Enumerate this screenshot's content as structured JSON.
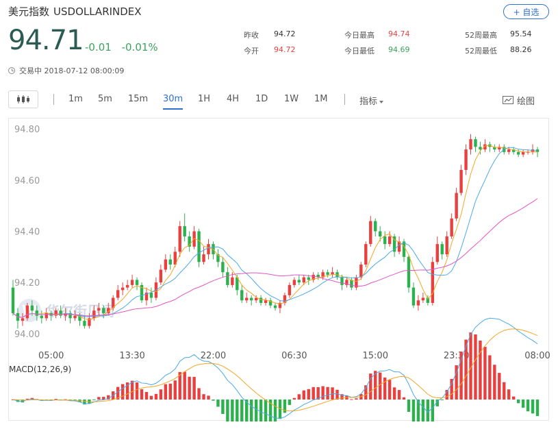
{
  "header": {
    "name": "美元指数",
    "code": "USDOLLARINDEX",
    "add_label": "+ 自选"
  },
  "quote": {
    "price": "94.71",
    "change": "-0.01",
    "change_pct": "-0.01%",
    "status": "交易中 2018-07-12 08:00:09"
  },
  "stats": [
    [
      {
        "label": "昨收",
        "value": "94.72",
        "tone": "dark"
      },
      {
        "label": "今开",
        "value": "94.72",
        "tone": "red"
      }
    ],
    [
      {
        "label": "今日最高",
        "value": "94.74",
        "tone": "red"
      },
      {
        "label": "今日最低",
        "value": "94.69",
        "tone": "green"
      }
    ],
    [
      {
        "label": "52周最高",
        "value": "95.54",
        "tone": "dark"
      },
      {
        "label": "52周最低",
        "value": "88.26",
        "tone": "dark"
      }
    ]
  ],
  "toolbar": {
    "periods": [
      "1m",
      "5m",
      "15m",
      "30m",
      "1H",
      "4H",
      "1D",
      "1W",
      "1M"
    ],
    "active_period": "30m",
    "indicator_label": "指标",
    "draw_label": "绘图"
  },
  "colors": {
    "up": "#e8403f",
    "down": "#2db14e",
    "ma_orange": "#f5a623",
    "ma_blue": "#4aa8e8",
    "ma_pink": "#e455c4",
    "macd_dif": "#4aa8e8",
    "macd_dea": "#f5a623"
  },
  "chart_data": {
    "type": "candlestick",
    "ylim": [
      93.97,
      94.83
    ],
    "y_ticks": [
      "94.80",
      "94.60",
      "94.40",
      "94.20",
      "94.00"
    ],
    "y_tick_values": [
      94.8,
      94.6,
      94.4,
      94.2,
      94.0
    ],
    "x_ticks": [
      "05:00",
      "13:30",
      "22:00",
      "06:30",
      "15:00",
      "23:30",
      "08:00"
    ],
    "x_tick_index": [
      8,
      25,
      42,
      59,
      76,
      93,
      110
    ],
    "watermark": "华尔街见闻",
    "candles": [
      [
        94.18,
        94.08,
        94.21,
        94.07
      ],
      [
        94.08,
        94.05,
        94.1,
        94.02
      ],
      [
        94.05,
        94.06,
        94.08,
        94.03
      ],
      [
        94.06,
        94.11,
        94.12,
        94.05
      ],
      [
        94.11,
        94.09,
        94.13,
        94.07
      ],
      [
        94.09,
        94.07,
        94.11,
        94.05
      ],
      [
        94.07,
        94.06,
        94.09,
        94.04
      ],
      [
        94.06,
        94.08,
        94.1,
        94.05
      ],
      [
        94.08,
        94.07,
        94.09,
        94.05
      ],
      [
        94.07,
        94.09,
        94.1,
        94.06
      ],
      [
        94.09,
        94.07,
        94.11,
        94.06
      ],
      [
        94.07,
        94.08,
        94.1,
        94.05
      ],
      [
        94.08,
        94.06,
        94.09,
        94.04
      ],
      [
        94.06,
        94.07,
        94.09,
        94.05
      ],
      [
        94.07,
        94.05,
        94.08,
        94.03
      ],
      [
        94.05,
        94.03,
        94.07,
        94.02
      ],
      [
        94.03,
        94.06,
        94.08,
        94.02
      ],
      [
        94.06,
        94.09,
        94.11,
        94.05
      ],
      [
        94.09,
        94.1,
        94.12,
        94.07
      ],
      [
        94.1,
        94.08,
        94.11,
        94.06
      ],
      [
        94.08,
        94.1,
        94.12,
        94.07
      ],
      [
        94.1,
        94.14,
        94.15,
        94.09
      ],
      [
        94.14,
        94.17,
        94.19,
        94.13
      ],
      [
        94.17,
        94.18,
        94.2,
        94.15
      ],
      [
        94.18,
        94.19,
        94.21,
        94.17
      ],
      [
        94.19,
        94.21,
        94.23,
        94.18
      ],
      [
        94.21,
        94.19,
        94.22,
        94.17
      ],
      [
        94.19,
        94.13,
        94.2,
        94.12
      ],
      [
        94.13,
        94.16,
        94.18,
        94.11
      ],
      [
        94.16,
        94.14,
        94.18,
        94.12
      ],
      [
        94.14,
        94.2,
        94.22,
        94.13
      ],
      [
        94.2,
        94.25,
        94.27,
        94.19
      ],
      [
        94.25,
        94.29,
        94.31,
        94.24
      ],
      [
        94.29,
        94.27,
        94.31,
        94.25
      ],
      [
        94.27,
        94.32,
        94.34,
        94.26
      ],
      [
        94.32,
        94.42,
        94.44,
        94.3
      ],
      [
        94.42,
        94.38,
        94.47,
        94.36
      ],
      [
        94.38,
        94.34,
        94.4,
        94.32
      ],
      [
        94.34,
        94.4,
        94.42,
        94.33
      ],
      [
        94.4,
        94.28,
        94.41,
        94.26
      ],
      [
        94.28,
        94.31,
        94.34,
        94.27
      ],
      [
        94.31,
        94.35,
        94.37,
        94.29
      ],
      [
        94.35,
        94.31,
        94.36,
        94.29
      ],
      [
        94.31,
        94.28,
        94.33,
        94.26
      ],
      [
        94.28,
        94.24,
        94.3,
        94.22
      ],
      [
        94.24,
        94.19,
        94.26,
        94.18
      ],
      [
        94.19,
        94.22,
        94.24,
        94.18
      ],
      [
        94.22,
        94.17,
        94.23,
        94.15
      ],
      [
        94.17,
        94.13,
        94.19,
        94.12
      ],
      [
        94.13,
        94.14,
        94.16,
        94.12
      ],
      [
        94.14,
        94.13,
        94.15,
        94.11
      ],
      [
        94.13,
        94.14,
        94.15,
        94.12
      ],
      [
        94.14,
        94.12,
        94.15,
        94.11
      ],
      [
        94.12,
        94.13,
        94.14,
        94.11
      ],
      [
        94.13,
        94.11,
        94.14,
        94.1
      ],
      [
        94.11,
        94.1,
        94.12,
        94.09
      ],
      [
        94.1,
        94.12,
        94.13,
        94.08
      ],
      [
        94.12,
        94.15,
        94.16,
        94.11
      ],
      [
        94.15,
        94.19,
        94.2,
        94.14
      ],
      [
        94.19,
        94.21,
        94.22,
        94.18
      ],
      [
        94.21,
        94.2,
        94.23,
        94.19
      ],
      [
        94.2,
        94.22,
        94.23,
        94.19
      ],
      [
        94.22,
        94.21,
        94.23,
        94.19
      ],
      [
        94.21,
        94.23,
        94.24,
        94.2
      ],
      [
        94.23,
        94.22,
        94.24,
        94.21
      ],
      [
        94.22,
        94.24,
        94.25,
        94.21
      ],
      [
        94.24,
        94.23,
        94.25,
        94.22
      ],
      [
        94.23,
        94.24,
        94.26,
        94.22
      ],
      [
        94.24,
        94.22,
        94.25,
        94.21
      ],
      [
        94.22,
        94.19,
        94.23,
        94.17
      ],
      [
        94.19,
        94.21,
        94.22,
        94.18
      ],
      [
        94.21,
        94.18,
        94.22,
        94.17
      ],
      [
        94.18,
        94.22,
        94.23,
        94.17
      ],
      [
        94.22,
        94.27,
        94.28,
        94.21
      ],
      [
        94.27,
        94.35,
        94.36,
        94.26
      ],
      [
        94.35,
        94.44,
        94.46,
        94.34
      ],
      [
        94.44,
        94.4,
        94.45,
        94.38
      ],
      [
        94.4,
        94.38,
        94.42,
        94.36
      ],
      [
        94.38,
        94.35,
        94.4,
        94.33
      ],
      [
        94.35,
        94.38,
        94.4,
        94.34
      ],
      [
        94.38,
        94.32,
        94.39,
        94.3
      ],
      [
        94.32,
        94.36,
        94.38,
        94.31
      ],
      [
        94.36,
        94.3,
        94.37,
        94.28
      ],
      [
        94.3,
        94.18,
        94.31,
        94.16
      ],
      [
        94.18,
        94.11,
        94.2,
        94.1
      ],
      [
        94.11,
        94.13,
        94.15,
        94.09
      ],
      [
        94.13,
        94.14,
        94.16,
        94.12
      ],
      [
        94.14,
        94.12,
        94.15,
        94.11
      ],
      [
        94.12,
        94.28,
        94.3,
        94.11
      ],
      [
        94.28,
        94.35,
        94.38,
        94.27
      ],
      [
        94.35,
        94.31,
        94.36,
        94.29
      ],
      [
        94.31,
        94.38,
        94.4,
        94.3
      ],
      [
        94.38,
        94.45,
        94.47,
        94.37
      ],
      [
        94.45,
        94.55,
        94.57,
        94.44
      ],
      [
        94.55,
        94.64,
        94.66,
        94.54
      ],
      [
        94.64,
        94.72,
        94.74,
        94.62
      ],
      [
        94.72,
        94.76,
        94.78,
        94.7
      ],
      [
        94.76,
        94.73,
        94.77,
        94.71
      ],
      [
        94.73,
        94.72,
        94.75,
        94.7
      ],
      [
        94.72,
        94.74,
        94.76,
        94.71
      ],
      [
        94.74,
        94.73,
        94.75,
        94.71
      ],
      [
        94.73,
        94.72,
        94.74,
        94.71
      ],
      [
        94.72,
        94.73,
        94.74,
        94.71
      ],
      [
        94.73,
        94.71,
        94.74,
        94.7
      ],
      [
        94.71,
        94.72,
        94.73,
        94.7
      ],
      [
        94.72,
        94.71,
        94.73,
        94.7
      ],
      [
        94.71,
        94.7,
        94.72,
        94.69
      ],
      [
        94.7,
        94.71,
        94.72,
        94.69
      ],
      [
        94.71,
        94.71,
        94.72,
        94.7
      ],
      [
        94.71,
        94.72,
        94.74,
        94.7
      ],
      [
        94.72,
        94.71,
        94.73,
        94.69
      ]
    ],
    "macd_label": "MACD(12,26,9)"
  }
}
